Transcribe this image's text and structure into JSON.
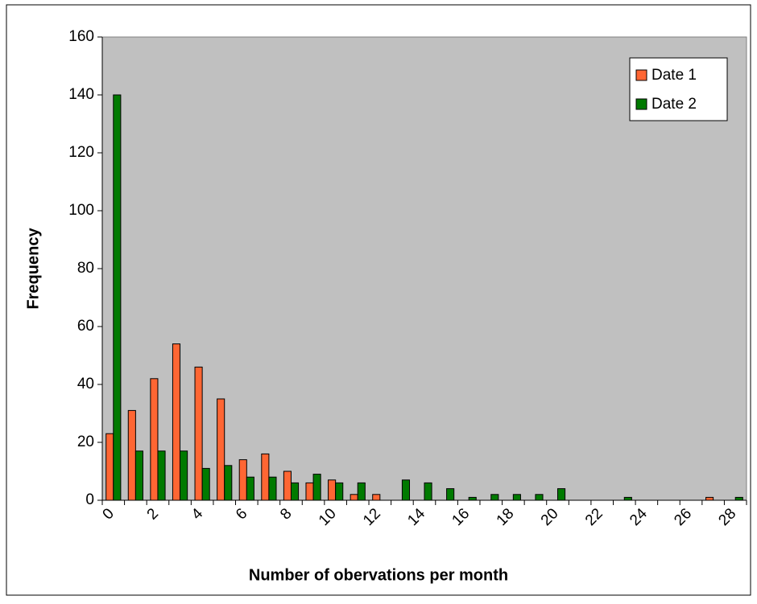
{
  "chart_data": {
    "type": "bar",
    "x_label": "Number of obervations per month",
    "y_label": "Frequency",
    "categories": [
      "0",
      null,
      "2",
      null,
      "4",
      null,
      "6",
      null,
      "8",
      null,
      "10",
      null,
      "12",
      null,
      "14",
      null,
      "16",
      null,
      "18",
      null,
      "20",
      null,
      "22",
      null,
      "24",
      null,
      "26",
      null,
      "28"
    ],
    "series": [
      {
        "name": "Date 1",
        "color": "#ff6633",
        "values": [
          23,
          31,
          42,
          54,
          46,
          35,
          14,
          16,
          10,
          6,
          7,
          2,
          2,
          0,
          0,
          0,
          0,
          0,
          0,
          0,
          0,
          0,
          0,
          0,
          0,
          0,
          0,
          1,
          0
        ]
      },
      {
        "name": "Date 2",
        "color": "#007a00",
        "values": [
          140,
          17,
          17,
          17,
          11,
          12,
          8,
          8,
          6,
          9,
          6,
          6,
          0,
          7,
          6,
          4,
          1,
          2,
          2,
          2,
          4,
          0,
          0,
          1,
          0,
          0,
          0,
          0,
          1
        ]
      }
    ],
    "ylim": [
      0,
      160
    ],
    "yticks": [
      0,
      20,
      40,
      60,
      80,
      100,
      120,
      140,
      160
    ],
    "plot_background": "#c0c0c0",
    "legend": "top-right"
  }
}
